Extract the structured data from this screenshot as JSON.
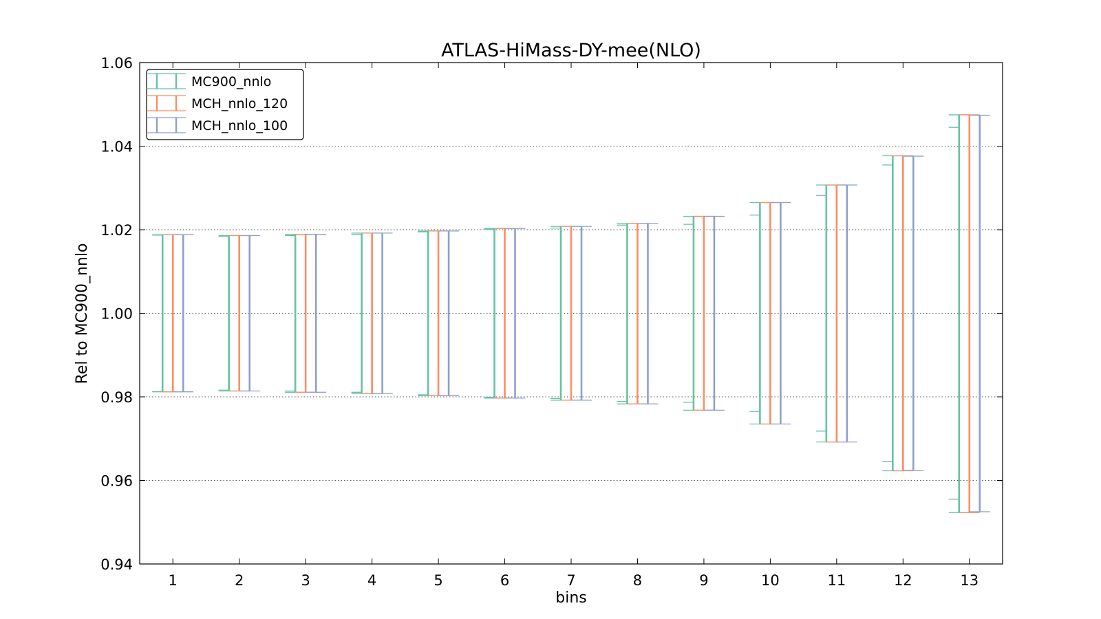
{
  "chart_data": {
    "type": "errorbar",
    "title": "ATLAS-HiMass-DY-mee(NLO)",
    "xlabel": "bins",
    "ylabel": "Rel to MC900_nnlo",
    "ylim": [
      0.94,
      1.06
    ],
    "yticks": [
      "0.94",
      "0.96",
      "0.98",
      "1.00",
      "1.02",
      "1.04",
      "1.06"
    ],
    "categories": [
      "1",
      "2",
      "3",
      "4",
      "5",
      "6",
      "7",
      "8",
      "9",
      "10",
      "11",
      "12",
      "13"
    ],
    "grid": "horizontal dotted",
    "legend_position": "top-left",
    "series": [
      {
        "name": "MC900_nnlo",
        "color": "#66c2a5",
        "upper": [
          1.0188,
          1.0186,
          1.0189,
          1.0192,
          1.0197,
          1.0203,
          1.0208,
          1.0215,
          1.0232,
          1.0265,
          1.0307,
          1.0377,
          1.0475
        ],
        "lower": [
          0.9812,
          0.9814,
          0.9811,
          0.9808,
          0.9803,
          0.9797,
          0.9792,
          0.9783,
          0.9768,
          0.9735,
          0.9692,
          0.9623,
          0.9523
        ],
        "inner_upper": [
          1.0187,
          1.0184,
          1.0186,
          1.0189,
          1.0195,
          1.0201,
          1.0204,
          1.0211,
          1.0213,
          1.0235,
          1.0282,
          1.0355,
          1.0445
        ],
        "inner_lower": [
          0.9813,
          0.9816,
          0.9814,
          0.9811,
          0.9805,
          0.9799,
          0.9796,
          0.9789,
          0.9787,
          0.9765,
          0.9718,
          0.9645,
          0.9555
        ]
      },
      {
        "name": "MCH_nnlo_120",
        "color": "#fc8d62",
        "upper": [
          1.0188,
          1.0186,
          1.0189,
          1.0192,
          1.0197,
          1.0203,
          1.0208,
          1.0215,
          1.0232,
          1.0265,
          1.0307,
          1.0377,
          1.0475
        ],
        "lower": [
          0.9812,
          0.9814,
          0.9811,
          0.9808,
          0.9803,
          0.9797,
          0.9792,
          0.9783,
          0.9768,
          0.9735,
          0.9692,
          0.9623,
          0.9523
        ]
      },
      {
        "name": "MCH_nnlo_100",
        "color": "#8da0cb",
        "upper": [
          1.0188,
          1.0186,
          1.0189,
          1.0192,
          1.0197,
          1.0203,
          1.0208,
          1.0215,
          1.0232,
          1.0265,
          1.0307,
          1.0376,
          1.0474
        ],
        "lower": [
          0.9812,
          0.9814,
          0.9811,
          0.9808,
          0.9803,
          0.9797,
          0.9792,
          0.9783,
          0.9768,
          0.9735,
          0.9692,
          0.9624,
          0.9525
        ]
      }
    ]
  }
}
